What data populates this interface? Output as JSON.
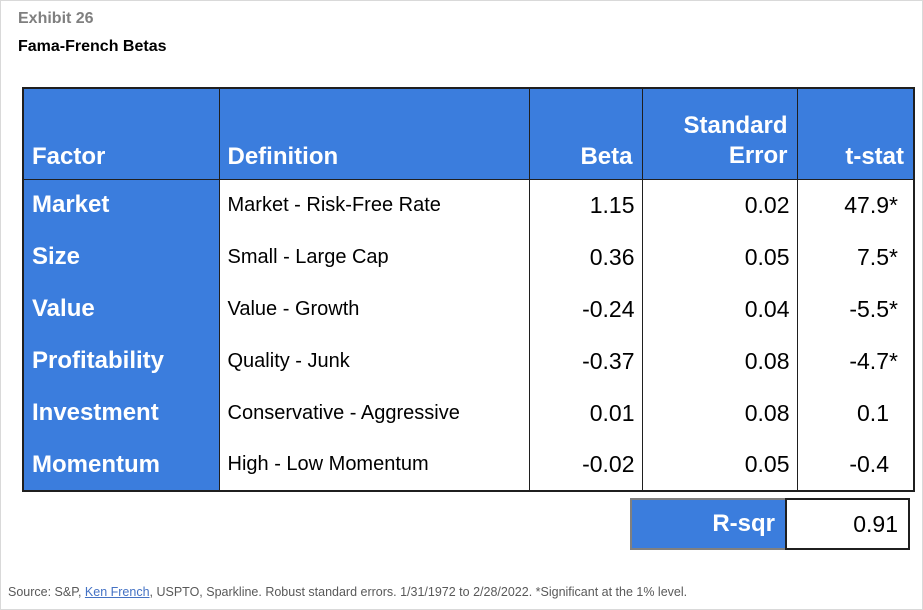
{
  "exhibit": {
    "label": "Exhibit 26",
    "title": "Fama-French Betas"
  },
  "table": {
    "header": {
      "factor": "Factor",
      "definition": "Definition",
      "beta": "Beta",
      "standard_error": "Standard\nError",
      "t_stat": "t-stat"
    },
    "rows": [
      {
        "factor": "Market",
        "definition": "Market - Risk-Free Rate",
        "beta": "1.15",
        "standard_error": "0.02",
        "t_stat": "47.9",
        "t_stat_star": "*"
      },
      {
        "factor": "Size",
        "definition": "Small - Large Cap",
        "beta": "0.36",
        "standard_error": "0.05",
        "t_stat": "7.5",
        "t_stat_star": "*"
      },
      {
        "factor": "Value",
        "definition": "Value - Growth",
        "beta": "-0.24",
        "standard_error": "0.04",
        "t_stat": "-5.5",
        "t_stat_star": "*"
      },
      {
        "factor": "Profitability",
        "definition": "Quality - Junk",
        "beta": "-0.37",
        "standard_error": "0.08",
        "t_stat": "-4.7",
        "t_stat_star": "*"
      },
      {
        "factor": "Investment",
        "definition": "Conservative - Aggressive",
        "beta": "0.01",
        "standard_error": "0.08",
        "t_stat": "0.1",
        "t_stat_star": ""
      },
      {
        "factor": "Momentum",
        "definition": "High - Low Momentum",
        "beta": "-0.02",
        "standard_error": "0.05",
        "t_stat": "-0.4",
        "t_stat_star": ""
      }
    ]
  },
  "summary": {
    "label": "R-sqr",
    "value": "0.91"
  },
  "footer": {
    "prefix": "Source: S&P, ",
    "link": "Ken French",
    "suffix": ", USPTO, Sparkline. Robust standard errors. 1/31/1972 to 2/28/2022. *Significant at the 1% level."
  },
  "colors": {
    "accent_blue": "#3b7ddd",
    "border_dark": "#1f1f1f",
    "summary_border_gray": "#808080",
    "footer_text": "#595959",
    "link_blue": "#4472c4",
    "exhibit_label_gray": "#7f7f7f"
  },
  "chart_data": {
    "type": "table",
    "title": "Fama-French Betas",
    "subtitle": "Exhibit 26",
    "columns": [
      "Factor",
      "Definition",
      "Beta",
      "Standard Error",
      "t-stat"
    ],
    "rows": [
      [
        "Market",
        "Market - Risk-Free Rate",
        1.15,
        0.02,
        "47.9*"
      ],
      [
        "Size",
        "Small - Large Cap",
        0.36,
        0.05,
        "7.5*"
      ],
      [
        "Value",
        "Value - Growth",
        -0.24,
        0.04,
        "-5.5*"
      ],
      [
        "Profitability",
        "Quality - Junk",
        -0.37,
        0.08,
        "-4.7*"
      ],
      [
        "Investment",
        "Conservative - Aggressive",
        0.01,
        0.08,
        "0.1"
      ],
      [
        "Momentum",
        "High - Low Momentum",
        -0.02,
        0.05,
        "-0.4"
      ]
    ],
    "r_sqr": 0.91,
    "notes": "Source: S&P, Ken French, USPTO, Sparkline. Robust standard errors. 1/31/1972 to 2/28/2022. *Significant at the 1% level."
  }
}
